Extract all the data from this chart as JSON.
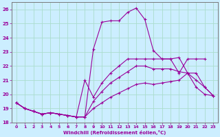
{
  "xlabel": "Windchill (Refroidissement éolien,°C)",
  "bg_color": "#cceeff",
  "grid_color": "#aaddcc",
  "line_color": "#990099",
  "xlim": [
    -0.5,
    23.5
  ],
  "ylim": [
    18,
    26.5
  ],
  "xticks": [
    0,
    1,
    2,
    3,
    4,
    5,
    6,
    7,
    8,
    9,
    10,
    11,
    12,
    13,
    14,
    15,
    16,
    17,
    18,
    19,
    20,
    21,
    22,
    23
  ],
  "yticks": [
    18,
    19,
    20,
    21,
    22,
    23,
    24,
    25,
    26
  ],
  "series": [
    {
      "x": [
        0,
        1,
        2,
        3,
        4,
        5,
        6,
        7,
        8,
        9,
        10,
        11,
        12,
        13,
        14,
        15,
        16,
        17,
        18,
        19,
        20,
        21,
        22
      ],
      "y": [
        19.4,
        19.0,
        18.8,
        18.6,
        18.7,
        18.6,
        18.5,
        18.4,
        18.4,
        23.2,
        25.1,
        25.2,
        25.2,
        25.8,
        26.1,
        25.3,
        23.1,
        22.5,
        22.5,
        21.5,
        22.5,
        22.5,
        22.5
      ]
    },
    {
      "x": [
        0,
        1,
        2,
        3,
        4,
        5,
        6,
        7,
        8,
        9,
        10,
        11,
        12,
        13,
        14,
        15,
        16,
        17,
        18,
        19,
        20,
        21,
        22,
        23
      ],
      "y": [
        19.4,
        19.0,
        18.8,
        18.6,
        18.7,
        18.6,
        18.5,
        18.4,
        21.0,
        19.8,
        20.8,
        21.5,
        22.0,
        22.5,
        22.5,
        22.5,
        22.5,
        22.5,
        22.5,
        22.6,
        21.5,
        20.5,
        20.0,
        19.9
      ]
    },
    {
      "x": [
        0,
        1,
        2,
        3,
        4,
        5,
        6,
        7,
        8,
        9,
        10,
        11,
        12,
        13,
        14,
        15,
        16,
        17,
        18,
        19,
        20,
        21,
        22,
        23
      ],
      "y": [
        19.4,
        19.0,
        18.8,
        18.6,
        18.7,
        18.6,
        18.5,
        18.4,
        18.4,
        19.5,
        20.2,
        20.8,
        21.2,
        21.6,
        22.0,
        22.0,
        21.8,
        21.8,
        21.8,
        21.6,
        21.5,
        21.5,
        20.5,
        19.9
      ]
    },
    {
      "x": [
        0,
        1,
        2,
        3,
        4,
        5,
        6,
        7,
        8,
        9,
        10,
        11,
        12,
        13,
        14,
        15,
        16,
        17,
        18,
        19,
        20,
        21,
        22,
        23
      ],
      "y": [
        19.4,
        19.0,
        18.8,
        18.6,
        18.7,
        18.6,
        18.5,
        18.4,
        18.4,
        19.0,
        19.4,
        19.8,
        20.1,
        20.4,
        20.7,
        20.8,
        20.7,
        20.8,
        20.9,
        21.0,
        21.5,
        21.0,
        20.5,
        19.9
      ]
    }
  ]
}
